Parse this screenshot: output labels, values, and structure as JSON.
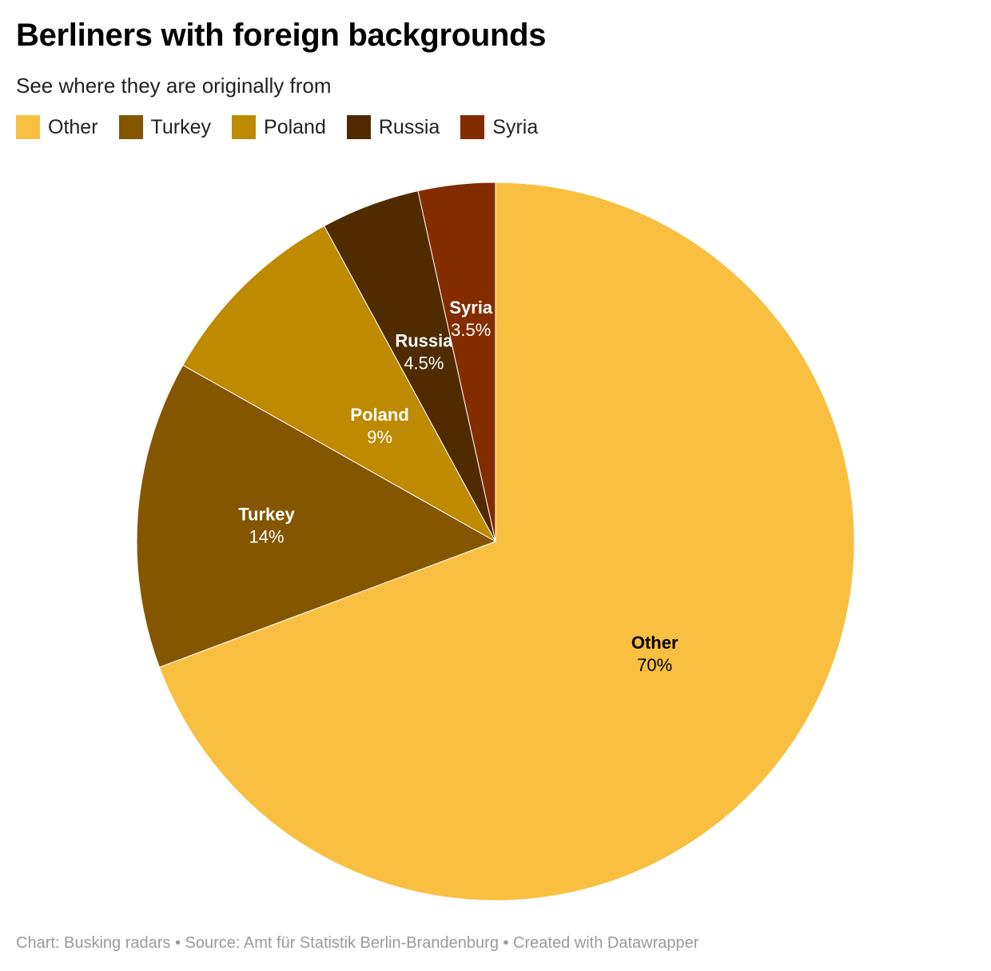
{
  "title": "Berliners with foreign backgrounds",
  "subtitle": "See where they are originally from",
  "footer": "Chart: Busking radars • Source: Amt für Statistik Berlin-Brandenburg • Created with Datawrapper",
  "chart_data": {
    "type": "pie",
    "legend_position": "top-left",
    "slices": [
      {
        "name": "Other",
        "value": 70,
        "label": "70%",
        "color": "#f9bf40",
        "text_color": "#000000"
      },
      {
        "name": "Turkey",
        "value": 14,
        "label": "14%",
        "color": "#845600",
        "text_color": "#ffffff"
      },
      {
        "name": "Poland",
        "value": 9,
        "label": "9%",
        "color": "#be8a00",
        "text_color": "#ffffff"
      },
      {
        "name": "Russia",
        "value": 4.5,
        "label": "4.5%",
        "color": "#502b00",
        "text_color": "#ffffff"
      },
      {
        "name": "Syria",
        "value": 3.5,
        "label": "3.5%",
        "color": "#832c00",
        "text_color": "#ffffff"
      }
    ]
  }
}
